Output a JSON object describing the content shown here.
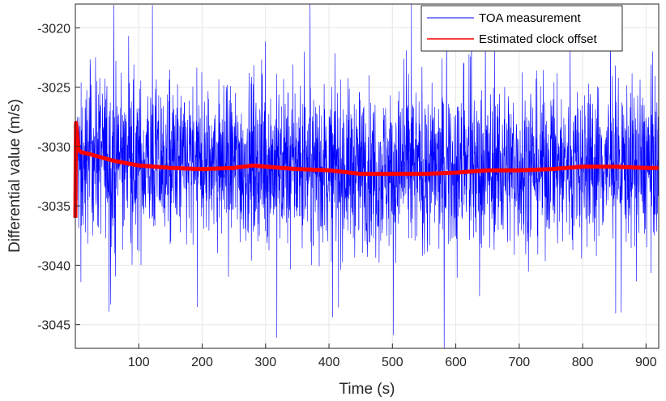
{
  "chart_data": {
    "type": "line",
    "xlabel": "Time (s)",
    "ylabel": "Differential value (m/s)",
    "xlim": [
      0,
      920
    ],
    "ylim": [
      -3047,
      -3018
    ],
    "xticks": [
      100,
      200,
      300,
      400,
      500,
      600,
      700,
      800,
      900
    ],
    "yticks": [
      -3045,
      -3040,
      -3035,
      -3030,
      -3025,
      -3020
    ],
    "grid": true,
    "legend_position": "top-right",
    "colors": {
      "measurement": "#0000ff",
      "estimate": "#ff0000",
      "grid": "#e6e6e6",
      "axis": "#262626"
    },
    "series": [
      {
        "name": "TOA measurement",
        "style": "noisy line",
        "approx_center": -3031.5,
        "band_typical": [
          -3037.5,
          -3025.5
        ],
        "extremes": [
          -3047,
          -3018
        ]
      },
      {
        "name": "Estimated clock offset",
        "style": "thick line",
        "x": [
          0,
          1,
          5,
          10,
          20,
          40,
          60,
          100,
          150,
          200,
          250,
          280,
          300,
          350,
          400,
          450,
          500,
          550,
          600,
          650,
          700,
          750,
          800,
          850,
          900,
          920
        ],
        "y": [
          -3036,
          -3028,
          -3030.3,
          -3030.5,
          -3030.6,
          -3030.9,
          -3031.2,
          -3031.6,
          -3031.8,
          -3031.9,
          -3031.8,
          -3031.6,
          -3031.7,
          -3031.9,
          -3032.0,
          -3032.3,
          -3032.3,
          -3032.3,
          -3032.2,
          -3032.0,
          -3032.0,
          -3031.9,
          -3031.7,
          -3031.7,
          -3031.8,
          -3031.8
        ]
      }
    ]
  }
}
